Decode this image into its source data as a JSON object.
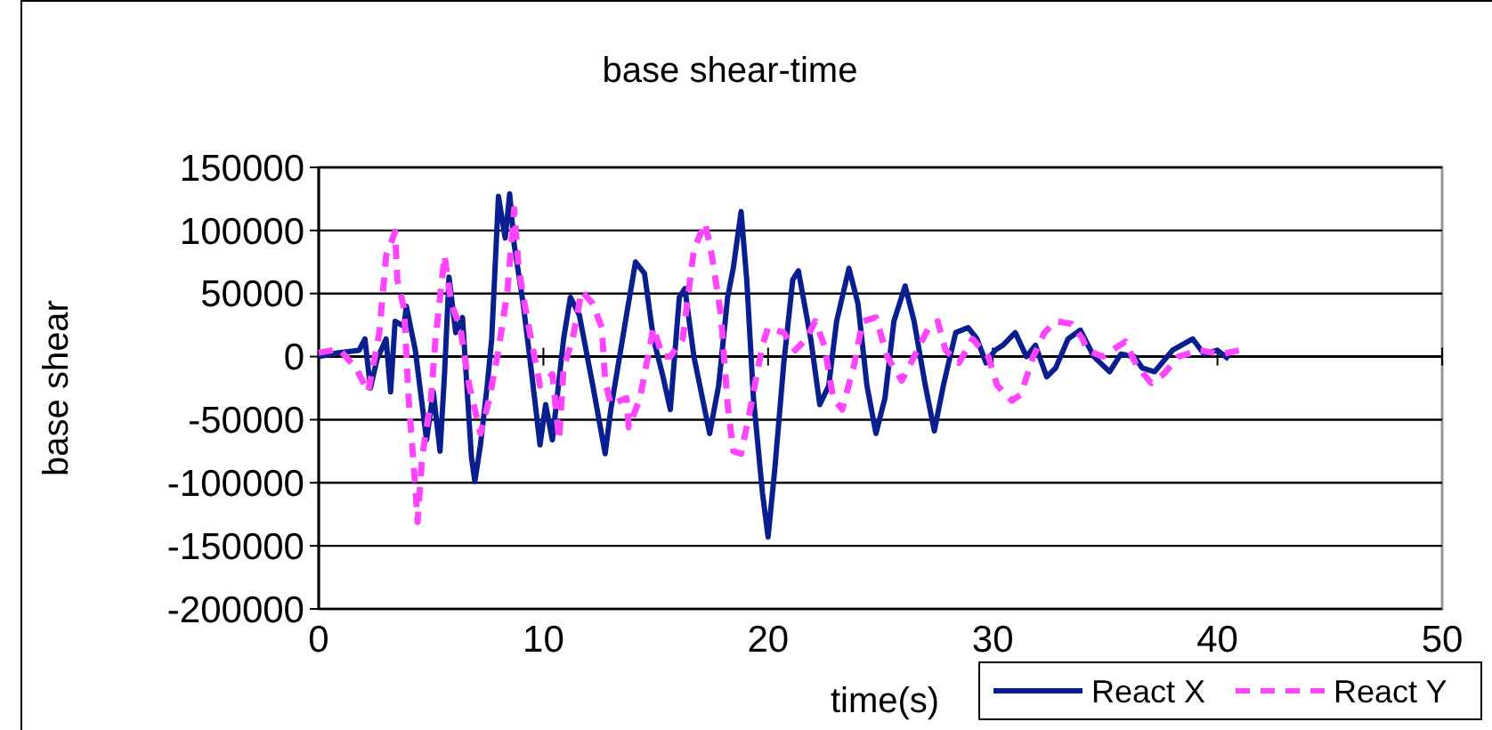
{
  "chart_data": {
    "type": "line",
    "title": "base shear-time",
    "xlabel": "time(s)",
    "ylabel": "base shear",
    "xlim": [
      0,
      50
    ],
    "xticks": [
      0,
      10,
      20,
      30,
      40,
      50
    ],
    "ylim": [
      -200000,
      150000
    ],
    "yticks": [
      {
        "value": 150000,
        "label": "150000"
      },
      {
        "value": 100000,
        "label": "100000"
      },
      {
        "value": 50000,
        "label": "50000"
      },
      {
        "value": 0,
        "label": "0"
      },
      {
        "value": -50000,
        "label": "-50000"
      },
      {
        "value": -100000,
        "label": "-100000"
      },
      {
        "value": -150000,
        "label": "-150000"
      },
      {
        "value": -200000,
        "label": "-200000"
      }
    ],
    "grid": "y",
    "legend": "bottom right",
    "series": [
      {
        "name": "React X",
        "color": "#0a1f8f",
        "line_style": "solid",
        "x": [
          0,
          0.9,
          1.8,
          2.06,
          2.3,
          2.6,
          3.0,
          3.2,
          3.4,
          3.8,
          3.9,
          4.3,
          4.8,
          5.1,
          5.4,
          5.6,
          5.8,
          6.1,
          6.4,
          6.8,
          6.95,
          7.2,
          7.5,
          7.7,
          8.0,
          8.3,
          8.5,
          8.7,
          9.1,
          9.45,
          9.85,
          10.1,
          10.4,
          10.9,
          11.2,
          11.6,
          12.2,
          12.75,
          13.0,
          13.7,
          14.1,
          14.5,
          14.9,
          15.3,
          15.65,
          16.05,
          16.3,
          16.7,
          17.4,
          17.8,
          18.2,
          18.45,
          18.8,
          19.05,
          19.35,
          19.75,
          20.0,
          20.3,
          20.7,
          21.1,
          21.35,
          21.9,
          22.3,
          22.7,
          23.05,
          23.6,
          24.0,
          24.4,
          24.8,
          25.2,
          25.6,
          26.1,
          26.5,
          27.0,
          27.4,
          27.8,
          28.35,
          28.9,
          29.3,
          29.7,
          30.1,
          30.45,
          31.0,
          31.5,
          31.9,
          32.4,
          32.8,
          33.35,
          33.9,
          34.5,
          35.2,
          35.7,
          36.3,
          36.65,
          37.2,
          38.0,
          38.9,
          39.4,
          40.0,
          40.5
        ],
        "values": [
          0,
          3000,
          5000,
          14000,
          -25000,
          -2000,
          14000,
          -28000,
          28000,
          24000,
          40000,
          5000,
          -66000,
          -28000,
          -75000,
          -14000,
          63000,
          19000,
          31000,
          -80000,
          -99000,
          -70000,
          -23000,
          14000,
          127000,
          94000,
          129000,
          89000,
          42000,
          -9000,
          -70000,
          -38000,
          -66000,
          14000,
          47000,
          33000,
          -23000,
          -77000,
          -42000,
          33000,
          75000,
          66000,
          14000,
          -14000,
          -42000,
          47000,
          54000,
          0,
          -61000,
          -23000,
          47000,
          70000,
          115000,
          61000,
          -33000,
          -108000,
          -143000,
          -89000,
          -5000,
          61000,
          68000,
          14000,
          -38000,
          -23000,
          28000,
          70000,
          42000,
          -23000,
          -61000,
          -33000,
          28000,
          56000,
          28000,
          -23000,
          -59000,
          -23000,
          19000,
          23000,
          14000,
          -5000,
          5000,
          9000,
          19000,
          0,
          9000,
          -16000,
          -9000,
          14000,
          21000,
          0,
          -12000,
          2000,
          0,
          -9000,
          -12000,
          5000,
          14000,
          2000,
          5000,
          -2000
        ]
      },
      {
        "name": "React Y",
        "color": "#ff44ff",
        "line_style": "dashed",
        "x": [
          0,
          0.9,
          1.66,
          2.2,
          2.7,
          3.0,
          3.4,
          3.5,
          3.8,
          4.0,
          4.3,
          4.4,
          4.6,
          5.0,
          5.2,
          5.6,
          5.9,
          6.3,
          6.7,
          7.2,
          7.6,
          8.0,
          8.4,
          8.7,
          8.9,
          9.2,
          9.45,
          9.85,
          10.4,
          10.7,
          10.9,
          11.3,
          11.7,
          12.2,
          12.6,
          12.75,
          13.0,
          13.7,
          13.8,
          14.3,
          14.9,
          15.3,
          15.65,
          16.2,
          16.7,
          17.2,
          17.5,
          17.9,
          18.2,
          18.45,
          18.8,
          19.2,
          19.75,
          20.0,
          20.7,
          21.2,
          21.7,
          22.1,
          22.5,
          22.9,
          23.3,
          23.85,
          24.2,
          24.8,
          25.3,
          25.95,
          26.5,
          27.15,
          27.55,
          27.9,
          28.5,
          29.1,
          29.8,
          30.2,
          30.85,
          31.25,
          31.8,
          32.3,
          32.8,
          33.5,
          34.0,
          34.2,
          34.9,
          35.9,
          36.4,
          37.05,
          37.6,
          38.25,
          39.2,
          40.2,
          41.0
        ],
        "values": [
          3000,
          6000,
          -9000,
          -28000,
          19000,
          80000,
          99000,
          61000,
          38000,
          -33000,
          -103000,
          -131000,
          -80000,
          -33000,
          14000,
          80000,
          42000,
          23000,
          -23000,
          -61000,
          -33000,
          5000,
          52000,
          117000,
          70000,
          38000,
          14000,
          -23000,
          -14000,
          -66000,
          -9000,
          14000,
          52000,
          42000,
          23000,
          -19000,
          -38000,
          -33000,
          -56000,
          -33000,
          23000,
          0,
          0,
          14000,
          85000,
          106000,
          80000,
          33000,
          -38000,
          -75000,
          -77000,
          -42000,
          9000,
          23000,
          19000,
          5000,
          14000,
          28000,
          9000,
          -33000,
          -42000,
          -5000,
          28000,
          31000,
          0,
          -19000,
          0,
          23000,
          28000,
          5000,
          -5000,
          14000,
          0,
          -23000,
          -35000,
          -30000,
          0,
          19000,
          28000,
          26000,
          14000,
          5000,
          0,
          12000,
          -7000,
          -21000,
          -14000,
          0,
          5000,
          2000,
          5000
        ]
      }
    ]
  }
}
